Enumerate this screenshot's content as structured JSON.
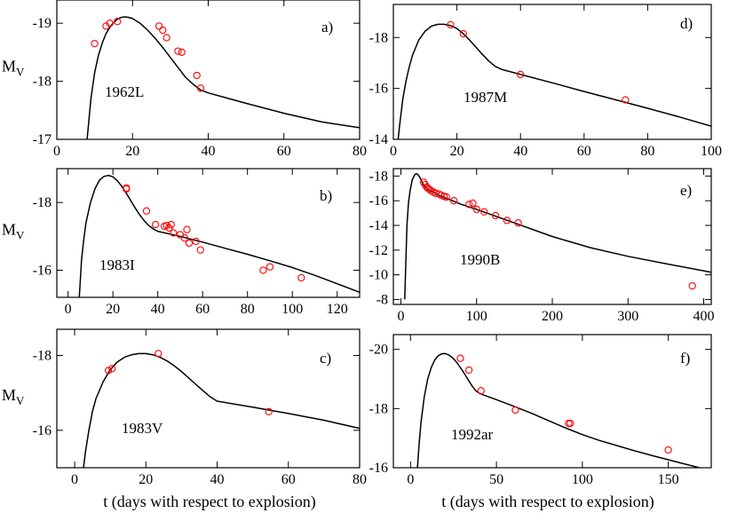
{
  "figure": {
    "xlabel": "t (days with respect to explosion)",
    "colors": {
      "model": "#000000",
      "observed": "#ff0000",
      "frame": "#000000"
    }
  },
  "chart_data": [
    {
      "type": "line",
      "panel": "a)",
      "sn": "1962L",
      "ylabel": "MV",
      "xlim": [
        0,
        80
      ],
      "xticks": [
        0,
        20,
        40,
        60,
        80
      ],
      "ylim": [
        -17,
        -19.4
      ],
      "yticks": [
        -17,
        -18,
        -19
      ],
      "series": [
        {
          "name": "model",
          "kind": "line",
          "x": [
            8,
            9,
            10,
            11,
            12,
            13,
            14,
            15,
            16,
            17,
            18,
            19,
            20,
            22,
            24,
            26,
            28,
            30,
            32,
            34,
            36,
            38,
            40,
            50,
            60,
            70,
            80
          ],
          "y": [
            -17.0,
            -17.7,
            -18.15,
            -18.45,
            -18.66,
            -18.82,
            -18.93,
            -19.01,
            -19.07,
            -19.1,
            -19.11,
            -19.1,
            -19.08,
            -19.0,
            -18.88,
            -18.74,
            -18.58,
            -18.41,
            -18.24,
            -18.07,
            -17.95,
            -17.85,
            -17.8,
            -17.62,
            -17.45,
            -17.3,
            -17.2
          ]
        },
        {
          "name": "observed",
          "kind": "scatter",
          "x": [
            10,
            13,
            14,
            16,
            27,
            28,
            29,
            32,
            33,
            37,
            38
          ],
          "y": [
            -18.65,
            -18.95,
            -19.0,
            -19.03,
            -18.95,
            -18.88,
            -18.75,
            -18.52,
            -18.5,
            -18.1,
            -17.88
          ]
        }
      ]
    },
    {
      "type": "line",
      "panel": "b)",
      "sn": "1983I",
      "ylabel": "MV",
      "xlim": [
        -5,
        130
      ],
      "xticks": [
        0,
        20,
        40,
        60,
        80,
        100,
        120
      ],
      "ylim": [
        -15.2,
        -19
      ],
      "yticks": [
        -16,
        -18
      ],
      "series": [
        {
          "name": "model",
          "kind": "line",
          "x": [
            5,
            6,
            7,
            8,
            10,
            12,
            14,
            16,
            18,
            20,
            22,
            24,
            26,
            28,
            30,
            32,
            34,
            36,
            38,
            40,
            50,
            60,
            70,
            80,
            90,
            100,
            110,
            120,
            130
          ],
          "y": [
            -15.2,
            -16.3,
            -16.9,
            -17.4,
            -18.0,
            -18.4,
            -18.66,
            -18.77,
            -18.8,
            -18.76,
            -18.64,
            -18.47,
            -18.27,
            -18.05,
            -17.83,
            -17.63,
            -17.46,
            -17.32,
            -17.22,
            -17.15,
            -17.0,
            -16.83,
            -16.65,
            -16.47,
            -16.28,
            -16.08,
            -15.85,
            -15.6,
            -15.35
          ]
        },
        {
          "name": "observed",
          "kind": "scatter",
          "x": [
            26,
            26,
            35,
            39,
            43,
            44,
            45,
            46,
            47,
            50,
            52,
            53,
            54,
            57,
            59,
            87,
            90,
            104
          ],
          "y": [
            -18.4,
            -18.43,
            -17.75,
            -17.35,
            -17.3,
            -17.32,
            -17.25,
            -17.35,
            -17.1,
            -17.05,
            -16.95,
            -17.2,
            -16.8,
            -16.85,
            -16.6,
            -16.0,
            -16.1,
            -15.78
          ]
        }
      ]
    },
    {
      "type": "line",
      "panel": "c)",
      "sn": "1983V",
      "ylabel": "MV",
      "xlim": [
        -5,
        80
      ],
      "xticks": [
        0,
        20,
        40,
        60,
        80
      ],
      "ylim": [
        -15,
        -18.7
      ],
      "yticks": [
        -16,
        -18
      ],
      "series": [
        {
          "name": "model",
          "kind": "line",
          "x": [
            2.5,
            3,
            4,
            5,
            6,
            8,
            10,
            12,
            14,
            16,
            18,
            20,
            22,
            24,
            26,
            28,
            30,
            32,
            34,
            36,
            38,
            40,
            50,
            60,
            70,
            80
          ],
          "y": [
            -15.0,
            -15.4,
            -16.0,
            -16.5,
            -16.85,
            -17.3,
            -17.62,
            -17.83,
            -17.95,
            -18.02,
            -18.05,
            -18.05,
            -18.02,
            -17.95,
            -17.85,
            -17.72,
            -17.57,
            -17.4,
            -17.23,
            -17.06,
            -16.9,
            -16.78,
            -16.62,
            -16.45,
            -16.27,
            -16.05
          ]
        },
        {
          "name": "observed",
          "kind": "scatter",
          "x": [
            9.5,
            10.5,
            23.5,
            54.5
          ],
          "y": [
            -17.6,
            -17.65,
            -18.05,
            -16.5
          ]
        }
      ]
    },
    {
      "type": "line",
      "panel": "d)",
      "sn": "1987M",
      "ylabel": "",
      "xlim": [
        0,
        100
      ],
      "xticks": [
        0,
        20,
        40,
        60,
        80,
        100
      ],
      "ylim": [
        -14,
        -19.3
      ],
      "yticks": [
        -14,
        -16,
        -18
      ],
      "series": [
        {
          "name": "model",
          "kind": "line",
          "x": [
            1.5,
            2,
            3,
            4,
            5,
            6,
            8,
            10,
            12,
            14,
            16,
            18,
            20,
            22,
            24,
            26,
            28,
            30,
            32,
            34,
            40,
            50,
            60,
            70,
            80,
            90,
            100
          ],
          "y": [
            -14.0,
            -14.6,
            -15.6,
            -16.3,
            -16.85,
            -17.3,
            -17.9,
            -18.25,
            -18.45,
            -18.52,
            -18.52,
            -18.47,
            -18.35,
            -18.15,
            -17.9,
            -17.62,
            -17.34,
            -17.08,
            -16.87,
            -16.75,
            -16.55,
            -16.22,
            -15.88,
            -15.55,
            -15.22,
            -14.88,
            -14.52
          ]
        },
        {
          "name": "observed",
          "kind": "scatter",
          "x": [
            18,
            22,
            40,
            73
          ],
          "y": [
            -18.5,
            -18.15,
            -16.55,
            -15.55
          ]
        }
      ]
    },
    {
      "type": "line",
      "panel": "e)",
      "sn": "1990B",
      "ylabel": "",
      "xlim": [
        -10,
        410
      ],
      "xticks": [
        0,
        100,
        200,
        300,
        400
      ],
      "ylim": [
        -7.6,
        -18.6
      ],
      "yticks": [
        -8,
        -10,
        -12,
        -14,
        -16,
        -18
      ],
      "series": [
        {
          "name": "model",
          "kind": "line",
          "x": [
            5,
            8,
            10,
            12,
            15,
            18,
            20,
            22,
            25,
            28,
            30,
            35,
            40,
            45,
            50,
            60,
            80,
            100,
            150,
            200,
            250,
            300,
            350,
            410
          ],
          "y": [
            -8.0,
            -14.0,
            -15.8,
            -16.8,
            -17.7,
            -18.1,
            -18.2,
            -18.15,
            -17.9,
            -17.5,
            -17.25,
            -16.95,
            -16.8,
            -16.62,
            -16.45,
            -16.2,
            -15.7,
            -15.3,
            -14.2,
            -13.1,
            -12.2,
            -11.5,
            -10.9,
            -10.2
          ]
        },
        {
          "name": "observed",
          "kind": "scatter",
          "x": [
            30,
            32,
            34,
            36,
            38,
            40,
            43,
            46,
            50,
            53,
            57,
            60,
            70,
            90,
            95,
            100,
            110,
            125,
            140,
            155,
            385
          ],
          "y": [
            -17.5,
            -17.3,
            -17.1,
            -17.0,
            -16.9,
            -16.8,
            -16.7,
            -16.6,
            -16.55,
            -16.45,
            -16.35,
            -16.3,
            -16.0,
            -15.7,
            -15.8,
            -15.3,
            -15.1,
            -14.8,
            -14.4,
            -14.2,
            -9.1
          ]
        }
      ]
    },
    {
      "type": "line",
      "panel": "f)",
      "sn": "1992ar",
      "ylabel": "",
      "xlim": [
        -10,
        175
      ],
      "xticks": [
        0,
        50,
        100,
        150
      ],
      "ylim": [
        -16,
        -20.5
      ],
      "yticks": [
        -16,
        -18,
        -20
      ],
      "series": [
        {
          "name": "model",
          "kind": "line",
          "x": [
            4,
            5,
            6,
            8,
            10,
            12,
            14,
            16,
            18,
            20,
            22,
            24,
            26,
            28,
            30,
            32,
            34,
            36,
            38,
            40,
            42,
            50,
            60,
            70,
            80,
            90,
            100,
            110,
            120,
            130,
            140,
            150,
            160,
            168
          ],
          "y": [
            -16.0,
            -16.8,
            -17.5,
            -18.4,
            -19.0,
            -19.38,
            -19.63,
            -19.78,
            -19.85,
            -19.86,
            -19.82,
            -19.74,
            -19.62,
            -19.47,
            -19.3,
            -19.12,
            -18.93,
            -18.75,
            -18.6,
            -18.52,
            -18.47,
            -18.3,
            -18.08,
            -17.85,
            -17.6,
            -17.35,
            -17.12,
            -16.92,
            -16.75,
            -16.58,
            -16.42,
            -16.27,
            -16.12,
            -16.0
          ]
        },
        {
          "name": "observed",
          "kind": "scatter",
          "x": [
            29,
            34,
            41,
            61,
            92,
            93,
            150
          ],
          "y": [
            -19.7,
            -19.3,
            -18.6,
            -17.95,
            -17.5,
            -17.5,
            -16.6
          ]
        }
      ]
    }
  ]
}
